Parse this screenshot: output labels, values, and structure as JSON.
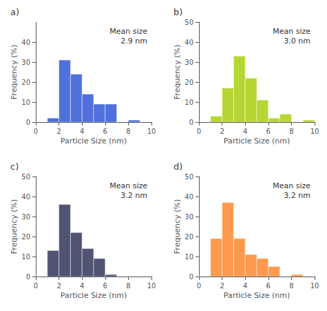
{
  "chart_data": [
    {
      "type": "histogram",
      "title": "a)",
      "annotation": "Mean size\n2.9 nm",
      "xlabel": "Particle Size (nm)",
      "ylabel": "Frequency (%)",
      "bins": [
        0,
        1,
        2,
        3,
        4,
        5,
        6,
        7,
        8,
        9,
        10
      ],
      "values": [
        0,
        2,
        31,
        24,
        14,
        9,
        9,
        0,
        1,
        0
      ],
      "xlim": [
        0,
        10
      ],
      "xticks": [
        0,
        2,
        4,
        6,
        8,
        10
      ],
      "ylim": [
        0,
        50
      ],
      "yticks": [
        0,
        10,
        20,
        30,
        40
      ],
      "grid": false
    },
    {
      "type": "histogram",
      "title": "b)",
      "annotation": "Mean size\n3.0 nm",
      "xlabel": "Particle Size (nm)",
      "ylabel": "Frequency (%)",
      "bins": [
        0,
        1,
        2,
        3,
        4,
        5,
        6,
        7,
        8,
        9,
        10
      ],
      "values": [
        0,
        3,
        17,
        33,
        22,
        11,
        2,
        4,
        0,
        1
      ],
      "xlim": [
        0,
        10
      ],
      "xticks": [
        0,
        2,
        4,
        6,
        8,
        10
      ],
      "ylim": [
        0,
        50
      ],
      "yticks": [
        0,
        10,
        20,
        30,
        40,
        50
      ],
      "grid": false
    },
    {
      "type": "histogram",
      "title": "c)",
      "annotation": "Mean size\n3.2 nm",
      "xlabel": "Particle Size (nm)",
      "ylabel": "Frequency (%)",
      "bins": [
        0,
        1,
        2,
        3,
        4,
        5,
        6,
        7,
        8,
        9,
        10
      ],
      "values": [
        0,
        13,
        36,
        22,
        14,
        9,
        1,
        0,
        0,
        0
      ],
      "xlim": [
        0,
        10
      ],
      "xticks": [
        0,
        2,
        4,
        6,
        8,
        10
      ],
      "ylim": [
        0,
        50
      ],
      "yticks": [
        0,
        10,
        20,
        30,
        40,
        50
      ],
      "grid": false
    },
    {
      "type": "histogram",
      "title": "d)",
      "annotation": "Mean size\n3.2 nm",
      "xlabel": "Particle Size (nm)",
      "ylabel": "Frequency (%)",
      "bins": [
        0,
        1,
        2,
        3,
        4,
        5,
        6,
        7,
        8,
        9,
        10
      ],
      "values": [
        0,
        19,
        37,
        19,
        11,
        9,
        5,
        0,
        1,
        0
      ],
      "xlim": [
        0,
        10
      ],
      "xticks": [
        0,
        2,
        4,
        6,
        8,
        10
      ],
      "ylim": [
        0,
        50
      ],
      "yticks": [
        0,
        10,
        20,
        30,
        40,
        50
      ],
      "grid": false
    }
  ]
}
